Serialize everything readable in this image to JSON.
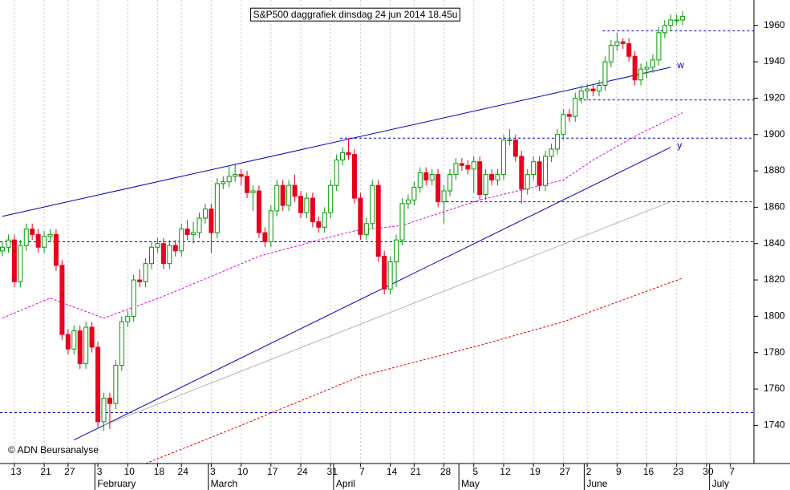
{
  "chart_data": {
    "type": "candlestick",
    "title": "S&P500 daggrafiek dinsdag 24 jun 2014 18.45u",
    "annotation": "© ADN Beursanalyse",
    "up_color": "#009a00",
    "down_color": "#e8001c",
    "categories": [
      "01-09",
      "01-10",
      "01-13",
      "01-14",
      "01-15",
      "01-16",
      "01-17",
      "01-21",
      "01-22",
      "01-23",
      "01-24",
      "01-27",
      "01-28",
      "01-29",
      "01-30",
      "01-31",
      "02-03",
      "02-04",
      "02-05",
      "02-06",
      "02-07",
      "02-10",
      "02-11",
      "02-12",
      "02-13",
      "02-14",
      "02-18",
      "02-19",
      "02-20",
      "02-21",
      "02-24",
      "02-25",
      "02-26",
      "02-27",
      "02-28",
      "03-03",
      "03-04",
      "03-05",
      "03-06",
      "03-07",
      "03-10",
      "03-11",
      "03-12",
      "03-13",
      "03-14",
      "03-17",
      "03-18",
      "03-19",
      "03-20",
      "03-21",
      "03-24",
      "03-25",
      "03-26",
      "03-27",
      "03-28",
      "03-31",
      "04-01",
      "04-02",
      "04-03",
      "04-04",
      "04-07",
      "04-08",
      "04-09",
      "04-10",
      "04-11",
      "04-14",
      "04-15",
      "04-16",
      "04-17",
      "04-21",
      "04-22",
      "04-23",
      "04-24",
      "04-25",
      "04-28",
      "04-29",
      "04-30",
      "05-01",
      "05-02",
      "05-05",
      "05-06",
      "05-07",
      "05-08",
      "05-09",
      "05-12",
      "05-13",
      "05-14",
      "05-15",
      "05-16",
      "05-19",
      "05-20",
      "05-21",
      "05-22",
      "05-23",
      "05-27",
      "05-28",
      "05-29",
      "05-30",
      "06-02",
      "06-03",
      "06-04",
      "06-05",
      "06-06",
      "06-09",
      "06-10",
      "06-11",
      "06-12",
      "06-13",
      "06-16",
      "06-17",
      "06-18",
      "06-19",
      "06-20",
      "06-23",
      "06-24",
      "06-25",
      "06-26",
      "06-27",
      "06-30",
      "07-01",
      "07-02",
      "07-03",
      "07-07"
    ],
    "open": [
      1836,
      1838,
      1842,
      1819,
      1839,
      1848,
      1845,
      1838,
      1844,
      1845,
      1828,
      1790,
      1782,
      1792,
      1774,
      1794,
      1783,
      1742,
      1755,
      1752,
      1773,
      1797,
      1800,
      1820,
      1819,
      1829,
      1838,
      1840,
      1829,
      1839,
      1836,
      1848,
      1845,
      1846,
      1854,
      1859,
      1846,
      1873,
      1874,
      1877,
      1878,
      1877,
      1868,
      1869,
      1846,
      1841,
      1858,
      1872,
      1861,
      1872,
      1866,
      1857,
      1865,
      1852,
      1849,
      1857,
      1872,
      1886,
      1890,
      1889,
      1865,
      1845,
      1851,
      1872,
      1833,
      1815,
      1830,
      1842,
      1862,
      1864,
      1871,
      1879,
      1875,
      1878,
      1863,
      1869,
      1878,
      1884,
      1883,
      1881,
      1885,
      1867,
      1878,
      1875,
      1878,
      1897,
      1897,
      1888,
      1870,
      1878,
      1885,
      1872,
      1888,
      1892,
      1900,
      1911,
      1910,
      1920,
      1924,
      1925,
      1924,
      1927,
      1940,
      1949,
      1951,
      1950,
      1943,
      1930,
      1936,
      1937,
      1941,
      1956,
      1960,
      1963,
      1963,
      null,
      null,
      null,
      null,
      null,
      null,
      null,
      null
    ],
    "high": [
      1841,
      1845,
      1845,
      1842,
      1851,
      1851,
      1848,
      1847,
      1848,
      1848,
      1831,
      1793,
      1795,
      1795,
      1797,
      1797,
      1786,
      1758,
      1758,
      1776,
      1800,
      1803,
      1823,
      1826,
      1832,
      1841,
      1843,
      1843,
      1842,
      1842,
      1851,
      1853,
      1852,
      1857,
      1862,
      1862,
      1876,
      1877,
      1883,
      1884,
      1881,
      1880,
      1872,
      1872,
      1849,
      1861,
      1875,
      1875,
      1875,
      1878,
      1869,
      1868,
      1868,
      1855,
      1860,
      1875,
      1889,
      1893,
      1898,
      1892,
      1868,
      1854,
      1875,
      1875,
      1836,
      1833,
      1845,
      1865,
      1867,
      1874,
      1882,
      1882,
      1881,
      1881,
      1872,
      1881,
      1887,
      1887,
      1886,
      1888,
      1888,
      1881,
      1881,
      1881,
      1900,
      1903,
      1900,
      1891,
      1881,
      1888,
      1888,
      1891,
      1895,
      1903,
      1914,
      1914,
      1923,
      1927,
      1928,
      1928,
      1930,
      1943,
      1952,
      1956,
      1953,
      1953,
      1946,
      1939,
      1940,
      1944,
      1959,
      1963,
      1966,
      1966,
      1968,
      null,
      null,
      null,
      null,
      null,
      null,
      null,
      null
    ],
    "low": [
      1833,
      1835,
      1816,
      1816,
      1836,
      1842,
      1835,
      1835,
      1841,
      1825,
      1787,
      1779,
      1779,
      1771,
      1771,
      1780,
      1739,
      1737,
      1738,
      1749,
      1770,
      1794,
      1797,
      1816,
      1816,
      1826,
      1835,
      1826,
      1826,
      1833,
      1833,
      1842,
      1840,
      1843,
      1851,
      1835,
      1843,
      1870,
      1871,
      1874,
      1872,
      1865,
      1858,
      1843,
      1838,
      1838,
      1855,
      1858,
      1858,
      1863,
      1854,
      1854,
      1849,
      1846,
      1846,
      1854,
      1869,
      1883,
      1886,
      1862,
      1842,
      1842,
      1848,
      1830,
      1812,
      1812,
      1816,
      1839,
      1859,
      1861,
      1868,
      1872,
      1872,
      1860,
      1851,
      1866,
      1875,
      1880,
      1878,
      1868,
      1864,
      1864,
      1872,
      1872,
      1875,
      1894,
      1885,
      1862,
      1867,
      1875,
      1869,
      1869,
      1885,
      1889,
      1897,
      1907,
      1907,
      1917,
      1919,
      1921,
      1921,
      1924,
      1937,
      1946,
      1947,
      1940,
      1927,
      1927,
      1931,
      1934,
      1938,
      1953,
      1957,
      1960,
      1960,
      null,
      null,
      null,
      null,
      null,
      null,
      null,
      null
    ],
    "close": [
      1838,
      1842,
      1819,
      1839,
      1848,
      1845,
      1838,
      1844,
      1845,
      1828,
      1790,
      1782,
      1792,
      1774,
      1794,
      1783,
      1742,
      1755,
      1752,
      1773,
      1797,
      1800,
      1820,
      1819,
      1829,
      1838,
      1840,
      1829,
      1839,
      1836,
      1848,
      1845,
      1846,
      1854,
      1859,
      1846,
      1873,
      1874,
      1877,
      1878,
      1877,
      1868,
      1869,
      1846,
      1841,
      1858,
      1872,
      1861,
      1872,
      1866,
      1857,
      1865,
      1852,
      1849,
      1857,
      1872,
      1886,
      1890,
      1889,
      1865,
      1845,
      1851,
      1872,
      1833,
      1815,
      1830,
      1842,
      1862,
      1864,
      1871,
      1879,
      1875,
      1878,
      1863,
      1869,
      1878,
      1884,
      1883,
      1881,
      1885,
      1867,
      1878,
      1875,
      1878,
      1897,
      1897,
      1888,
      1870,
      1878,
      1885,
      1872,
      1888,
      1892,
      1900,
      1911,
      1910,
      1920,
      1924,
      1925,
      1924,
      1927,
      1940,
      1949,
      1951,
      1950,
      1943,
      1930,
      1936,
      1937,
      1941,
      1956,
      1960,
      1963,
      1963,
      1965,
      null,
      null,
      null,
      null,
      null,
      null,
      null,
      null
    ],
    "ylim": [
      1719,
      1974
    ],
    "yticks": [
      1740,
      1760,
      1780,
      1800,
      1820,
      1840,
      1860,
      1880,
      1900,
      1920,
      1940,
      1960
    ],
    "xticks": [
      {
        "value": "01-13",
        "label": "13"
      },
      {
        "value": "01-21",
        "label": "21"
      },
      {
        "value": "01-27",
        "label": "27"
      },
      {
        "value": "02-03",
        "label": "3"
      },
      {
        "value": "02-10",
        "label": "10"
      },
      {
        "value": "02-18",
        "label": "18"
      },
      {
        "value": "02-24",
        "label": "24"
      },
      {
        "value": "03-03",
        "label": "3"
      },
      {
        "value": "03-10",
        "label": "10"
      },
      {
        "value": "03-17",
        "label": "17"
      },
      {
        "value": "03-24",
        "label": "24"
      },
      {
        "value": "03-31",
        "label": "31"
      },
      {
        "value": "04-07",
        "label": "7"
      },
      {
        "value": "04-14",
        "label": "14"
      },
      {
        "value": "04-21",
        "label": "21"
      },
      {
        "value": "04-28",
        "label": "28"
      },
      {
        "value": "05-05",
        "label": "5"
      },
      {
        "value": "05-12",
        "label": "12"
      },
      {
        "value": "05-19",
        "label": "19"
      },
      {
        "value": "05-27",
        "label": "27"
      },
      {
        "value": "06-02",
        "label": "2"
      },
      {
        "value": "06-09",
        "label": "9"
      },
      {
        "value": "06-16",
        "label": "16"
      },
      {
        "value": "06-23",
        "label": "23"
      },
      {
        "value": "06-30",
        "label": "30"
      },
      {
        "value": "07-07",
        "label": "7"
      }
    ],
    "month_ticks": [
      {
        "value": "02-03",
        "label": "February"
      },
      {
        "value": "03-03",
        "label": "March"
      },
      {
        "value": "04-01",
        "label": "April"
      },
      {
        "value": "05-01",
        "label": "May"
      },
      {
        "value": "06-02",
        "label": "June"
      },
      {
        "value": "07-01",
        "label": "July"
      }
    ],
    "levels": [
      {
        "value": 1957,
        "from": "06-05"
      },
      {
        "value": 1919,
        "from": "05-30"
      },
      {
        "value": 1898,
        "from": "04-02"
      },
      {
        "value": 1863,
        "from": "04-28"
      },
      {
        "value": 1841,
        "from": "01-09"
      },
      {
        "value": 1747,
        "from": "01-09"
      }
    ],
    "trendlines": [
      {
        "label": "w",
        "color": "#0000c0",
        "x": [
          "01-09",
          "06-20"
        ],
        "values": [
          1855,
          1937
        ]
      },
      {
        "label": "y",
        "color": "#0000c0",
        "x": [
          "01-28",
          "06-20"
        ],
        "values": [
          1732,
          1893
        ]
      },
      {
        "color": "#b4b4b4",
        "x": [
          "02-04",
          "06-20"
        ],
        "values": [
          1740,
          1863
        ]
      }
    ],
    "moving_averages": [
      {
        "color": "#e000e0",
        "x": [
          "01-09",
          "01-22",
          "02-04",
          "02-19",
          "03-03",
          "03-13",
          "03-27",
          "04-04",
          "04-16",
          "05-06",
          "05-27",
          "06-03",
          "06-12",
          "06-24"
        ],
        "values": [
          1799,
          1810,
          1799,
          1811,
          1822,
          1833,
          1842,
          1847,
          1850,
          1864,
          1875,
          1886,
          1899,
          1912
        ]
      },
      {
        "color": "#e00000",
        "x": [
          "02-13",
          "03-10",
          "04-07",
          "05-06",
          "05-27",
          "06-24"
        ],
        "values": [
          1719,
          1740,
          1767,
          1784,
          1797,
          1821
        ]
      }
    ]
  }
}
